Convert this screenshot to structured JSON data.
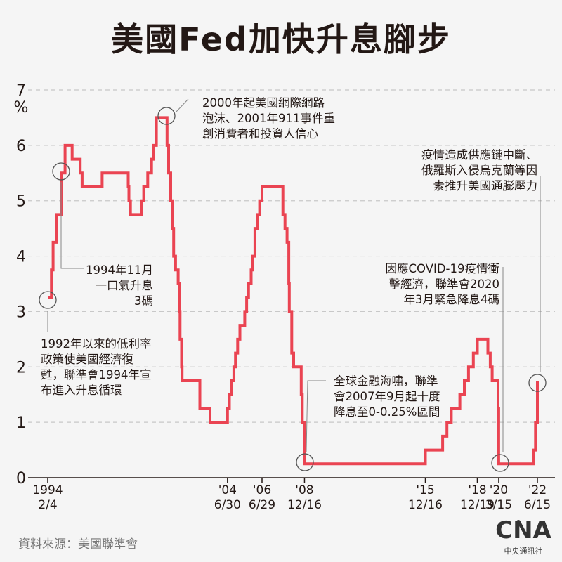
{
  "title": "美國Fed加快升息腳步",
  "source": "資料來源：美國聯準會",
  "logo": {
    "mark": "CNA",
    "text": "中央通訊社"
  },
  "colors": {
    "line": "#ea4452",
    "text": "#231815",
    "grid": "#c8c8c8",
    "background": "#f5f5f5"
  },
  "chart_data": {
    "type": "line",
    "title": "美國Fed加快升息腳步",
    "ylabel": "%",
    "ylim": [
      0,
      7
    ],
    "yticks": [
      0,
      1,
      2,
      3,
      4,
      5,
      6,
      7
    ],
    "grid": true,
    "xlim": [
      1994.09,
      2022.45
    ],
    "xticks": [
      {
        "x": 1994.09,
        "line1": "1994",
        "line2": "2/4"
      },
      {
        "x": 2004.5,
        "line1": "'04",
        "line2": "6/30"
      },
      {
        "x": 2006.5,
        "line1": "'06",
        "line2": "6/29"
      },
      {
        "x": 2008.96,
        "line1": "'08",
        "line2": "12/16"
      },
      {
        "x": 2015.96,
        "line1": "'15",
        "line2": "12/16"
      },
      {
        "x": 2018.97,
        "line1": "'18",
        "line2": "12/19"
      },
      {
        "x": 2020.21,
        "line1": "'20",
        "line2": "3/15"
      },
      {
        "x": 2022.45,
        "line1": "'22",
        "line2": "6/15"
      }
    ],
    "series": [
      {
        "values": [
          [
            1994.09,
            3.25
          ],
          [
            1994.3,
            3.75
          ],
          [
            1994.4,
            4.25
          ],
          [
            1994.62,
            4.75
          ],
          [
            1994.87,
            5.5
          ],
          [
            1995.09,
            6.0
          ],
          [
            1995.5,
            5.75
          ],
          [
            1995.97,
            5.5
          ],
          [
            1996.08,
            5.25
          ],
          [
            1997.24,
            5.5
          ],
          [
            1998.75,
            5.25
          ],
          [
            1998.79,
            5.0
          ],
          [
            1998.88,
            4.75
          ],
          [
            1999.5,
            5.0
          ],
          [
            1999.65,
            5.25
          ],
          [
            1999.88,
            5.5
          ],
          [
            2000.1,
            5.75
          ],
          [
            2000.22,
            6.0
          ],
          [
            2000.38,
            6.5
          ],
          [
            2001.0,
            6.0
          ],
          [
            2001.09,
            5.5
          ],
          [
            2001.21,
            5.0
          ],
          [
            2001.3,
            4.5
          ],
          [
            2001.38,
            4.0
          ],
          [
            2001.49,
            3.75
          ],
          [
            2001.64,
            3.5
          ],
          [
            2001.71,
            3.0
          ],
          [
            2001.75,
            2.5
          ],
          [
            2001.84,
            2.0
          ],
          [
            2001.87,
            1.75
          ],
          [
            2002.9,
            1.25
          ],
          [
            2003.49,
            1.0
          ],
          [
            2004.5,
            1.25
          ],
          [
            2004.61,
            1.5
          ],
          [
            2004.72,
            1.75
          ],
          [
            2004.87,
            2.0
          ],
          [
            2004.96,
            2.25
          ],
          [
            2005.09,
            2.5
          ],
          [
            2005.22,
            2.75
          ],
          [
            2005.5,
            3.0
          ],
          [
            2005.61,
            3.25
          ],
          [
            2005.72,
            3.5
          ],
          [
            2005.87,
            3.75
          ],
          [
            2005.96,
            4.0
          ],
          [
            2006.09,
            4.5
          ],
          [
            2006.24,
            4.75
          ],
          [
            2006.36,
            5.0
          ],
          [
            2006.5,
            5.25
          ],
          [
            2007.71,
            4.75
          ],
          [
            2007.83,
            4.5
          ],
          [
            2007.95,
            4.25
          ],
          [
            2008.05,
            3.5
          ],
          [
            2008.08,
            3.0
          ],
          [
            2008.22,
            2.25
          ],
          [
            2008.33,
            2.0
          ],
          [
            2008.77,
            1.5
          ],
          [
            2008.83,
            1.0
          ],
          [
            2008.96,
            0.25
          ],
          [
            2015.96,
            0.5
          ],
          [
            2016.96,
            0.75
          ],
          [
            2017.21,
            1.0
          ],
          [
            2017.46,
            1.25
          ],
          [
            2017.96,
            1.5
          ],
          [
            2018.22,
            1.75
          ],
          [
            2018.46,
            2.0
          ],
          [
            2018.74,
            2.25
          ],
          [
            2018.97,
            2.5
          ],
          [
            2019.58,
            2.25
          ],
          [
            2019.72,
            2.0
          ],
          [
            2019.83,
            1.75
          ],
          [
            2020.17,
            1.25
          ],
          [
            2020.21,
            0.25
          ],
          [
            2022.21,
            0.5
          ],
          [
            2022.34,
            1.0
          ],
          [
            2022.45,
            1.75
          ]
        ]
      }
    ],
    "annotations": [
      {
        "lines": [
          "2000年起美國網際網路",
          "泡沫、2001年911事件重",
          "創消費者和投資人信心"
        ]
      },
      {
        "lines": [
          "疫情造成供應鏈中斷、",
          "俄羅斯入侵烏克蘭等因",
          "素推升美國通膨壓力"
        ]
      },
      {
        "lines": [
          "1994年11月",
          "一口氣升息",
          "3碼"
        ]
      },
      {
        "lines": [
          "因應COVID-19疫情衝",
          "擊經濟，聯準會2020",
          "年3月緊急降息4碼"
        ]
      },
      {
        "lines": [
          "1992年以來的低利率",
          "政策使美國經濟復",
          "甦，聯準會1994年宣",
          "布進入升息循環"
        ]
      },
      {
        "lines": [
          "全球金融海嘯，聯準",
          "會2007年9月起十度",
          "降息至0-0.25%區間"
        ]
      }
    ]
  }
}
